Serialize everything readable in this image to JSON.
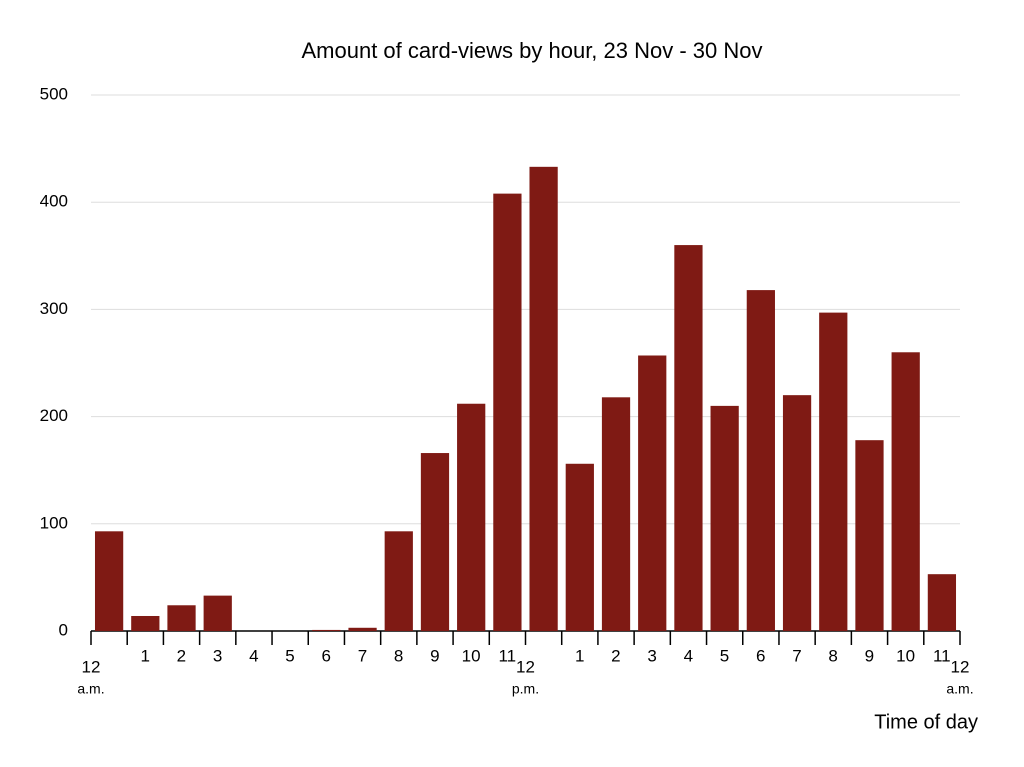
{
  "chart_data": {
    "type": "histogram",
    "title": "Amount of card-views by hour, 23 Nov - 30 Nov",
    "x_label": "Time of day",
    "bins": [
      0,
      1,
      2,
      3,
      4,
      5,
      6,
      7,
      8,
      9,
      10,
      11,
      12,
      13,
      14,
      15,
      16,
      17,
      18,
      19,
      20,
      21,
      22,
      23,
      24
    ],
    "values": [
      93,
      14,
      24,
      33,
      0,
      0,
      1,
      3,
      93,
      166,
      212,
      408,
      433,
      156,
      218,
      257,
      360,
      210,
      318,
      220,
      297,
      178,
      260,
      53
    ],
    "color": "#7f1a14",
    "xlim": [
      0,
      24
    ],
    "xticks": [
      {
        "value": 0,
        "label": "12"
      },
      1,
      2,
      3,
      4,
      5,
      6,
      7,
      8,
      9,
      10,
      11,
      {
        "value": 12,
        "label": "12"
      },
      {
        "value": 13,
        "label": "1"
      },
      {
        "value": 14,
        "label": "2"
      },
      {
        "value": 15,
        "label": "3"
      },
      {
        "value": 16,
        "label": "4"
      },
      {
        "value": 17,
        "label": "5"
      },
      {
        "value": 18,
        "label": "6"
      },
      {
        "value": 19,
        "label": "7"
      },
      {
        "value": 20,
        "label": "8"
      },
      {
        "value": 21,
        "label": "9"
      },
      {
        "value": 22,
        "label": "10"
      },
      {
        "value": 23,
        "label": "11"
      },
      {
        "value": 24,
        "label": "12"
      }
    ],
    "xtick_sublabels": [
      {
        "value": 0,
        "label": "a.m."
      },
      {
        "value": 12,
        "label": "p.m."
      },
      {
        "value": 24,
        "label": "a.m."
      }
    ],
    "ylim": [
      0,
      500
    ],
    "yticks": [
      0,
      100,
      200,
      300,
      400,
      500
    ],
    "grid": true
  }
}
